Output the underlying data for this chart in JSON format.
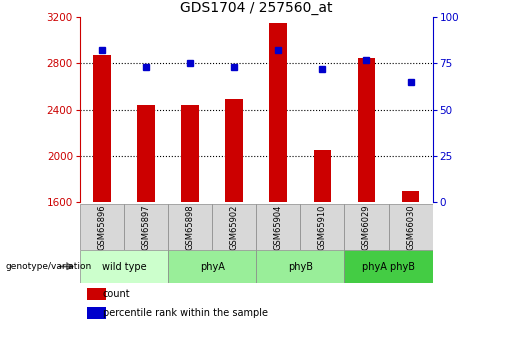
{
  "title": "GDS1704 / 257560_at",
  "samples": [
    "GSM65896",
    "GSM65897",
    "GSM65898",
    "GSM65902",
    "GSM65904",
    "GSM65910",
    "GSM66029",
    "GSM66030"
  ],
  "counts": [
    2870,
    2440,
    2440,
    2490,
    3150,
    2050,
    2850,
    1690
  ],
  "percentiles": [
    82,
    73,
    75,
    73,
    82,
    72,
    77,
    65
  ],
  "ylim_left": [
    1600,
    3200
  ],
  "ylim_right": [
    0,
    100
  ],
  "yticks_left": [
    1600,
    2000,
    2400,
    2800,
    3200
  ],
  "yticks_right": [
    0,
    25,
    50,
    75,
    100
  ],
  "bar_color": "#cc0000",
  "dot_color": "#0000cc",
  "grid_lines": [
    2000,
    2400,
    2800
  ],
  "group_data": [
    {
      "label": "wild type",
      "start": 0,
      "end": 2,
      "color": "#ccffcc"
    },
    {
      "label": "phyA",
      "start": 2,
      "end": 4,
      "color": "#99ee99"
    },
    {
      "label": "phyB",
      "start": 4,
      "end": 6,
      "color": "#99ee99"
    },
    {
      "label": "phyA phyB",
      "start": 6,
      "end": 8,
      "color": "#44cc44"
    }
  ],
  "sample_box_color": "#d8d8d8",
  "genotype_label": "genotype/variation",
  "legend_count_label": "count",
  "legend_pct_label": "percentile rank within the sample",
  "title_fontsize": 10,
  "tick_fontsize": 7.5,
  "label_fontsize": 7,
  "bar_width": 0.4
}
